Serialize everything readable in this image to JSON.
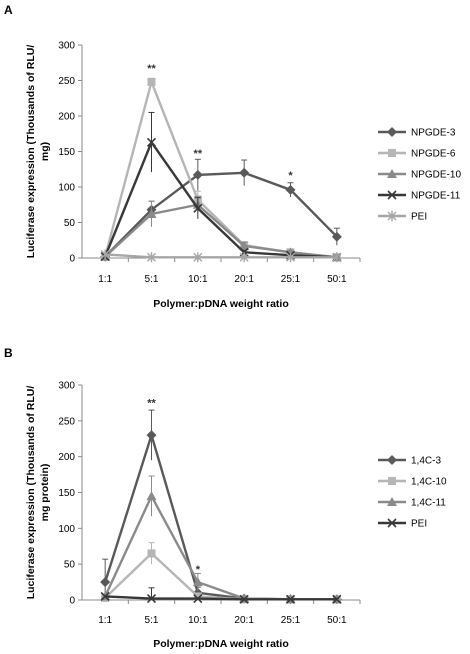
{
  "chart_data": [
    {
      "panel": "A",
      "type": "line",
      "xlabel": "Polymer:pDNA weight ratio",
      "ylabel": "Luciferase expression (Thousands of RLU/ mg)",
      "ylabel_lines": [
        "Luciferase expression (Thousands of RLU/",
        "mg)"
      ],
      "categories": [
        "1:1",
        "5:1",
        "10:1",
        "20:1",
        "25:1",
        "50:1"
      ],
      "ylim": [
        0,
        300
      ],
      "yticks": [
        "0",
        "50",
        "100",
        "150",
        "200",
        "250",
        "300"
      ],
      "grid": false,
      "legend_position": "right",
      "series": [
        {
          "name": "NPGDE-3",
          "color": "#595959",
          "marker": "diamond",
          "values": [
            2,
            68,
            117,
            120,
            96,
            30
          ],
          "errors": [
            2,
            12,
            22,
            18,
            10,
            12
          ]
        },
        {
          "name": "NPGDE-6",
          "color": "#b5b5b5",
          "marker": "square",
          "values": [
            2,
            248,
            82,
            18,
            8,
            1
          ],
          "errors": [
            1,
            5,
            12,
            5,
            3,
            1
          ]
        },
        {
          "name": "NPGDE-10",
          "color": "#8a8a8a",
          "marker": "triangle",
          "values": [
            2,
            62,
            75,
            17,
            8,
            1
          ],
          "errors": [
            1,
            18,
            12,
            5,
            3,
            1
          ]
        },
        {
          "name": "NPGDE-11",
          "color": "#383838",
          "marker": "x",
          "values": [
            2,
            163,
            70,
            8,
            4,
            1
          ],
          "errors": [
            1,
            42,
            15,
            3,
            2,
            1
          ]
        },
        {
          "name": "PEI",
          "color": "#a6a6a6",
          "marker": "star",
          "values": [
            5,
            1,
            1,
            1,
            1,
            1
          ],
          "errors": [
            0,
            0,
            0,
            0,
            0,
            0
          ]
        }
      ],
      "annotations": [
        {
          "text": "**",
          "category": "5:1",
          "y": 262
        },
        {
          "text": "**",
          "category": "10:1",
          "y": 142
        },
        {
          "text": "*",
          "category": "25:1",
          "y": 111
        }
      ]
    },
    {
      "panel": "B",
      "type": "line",
      "xlabel": "Polymer:pDNA weight ratio",
      "ylabel": "Luciferase expression (Thousands of RLU/ mg protein)",
      "ylabel_lines": [
        "Luciferase expression (Thousands of RLU/",
        "mg protein)"
      ],
      "categories": [
        "1:1",
        "5:1",
        "10:1",
        "20:1",
        "25:1",
        "50:1"
      ],
      "ylim": [
        0,
        300
      ],
      "yticks": [
        "0",
        "50",
        "100",
        "150",
        "200",
        "250",
        "300"
      ],
      "grid": false,
      "legend_position": "right",
      "series": [
        {
          "name": "1,4C-3",
          "color": "#595959",
          "marker": "diamond",
          "values": [
            25,
            230,
            10,
            2,
            1,
            1
          ],
          "errors": [
            32,
            35,
            8,
            1,
            1,
            1
          ]
        },
        {
          "name": "1,4C-10",
          "color": "#b5b5b5",
          "marker": "square",
          "values": [
            3,
            65,
            5,
            1,
            1,
            1
          ],
          "errors": [
            2,
            15,
            3,
            1,
            1,
            1
          ]
        },
        {
          "name": "1,4C-11",
          "color": "#8a8a8a",
          "marker": "triangle",
          "values": [
            5,
            145,
            25,
            2,
            1,
            1
          ],
          "errors": [
            3,
            28,
            12,
            1,
            1,
            1
          ]
        },
        {
          "name": "PEI",
          "color": "#383838",
          "marker": "x",
          "values": [
            5,
            2,
            2,
            1,
            1,
            1
          ],
          "errors": [
            0,
            15,
            0,
            0,
            0,
            0
          ]
        }
      ],
      "annotations": [
        {
          "text": "**",
          "category": "5:1",
          "y": 270
        },
        {
          "text": "*",
          "category": "10:1",
          "y": 38
        }
      ]
    }
  ]
}
